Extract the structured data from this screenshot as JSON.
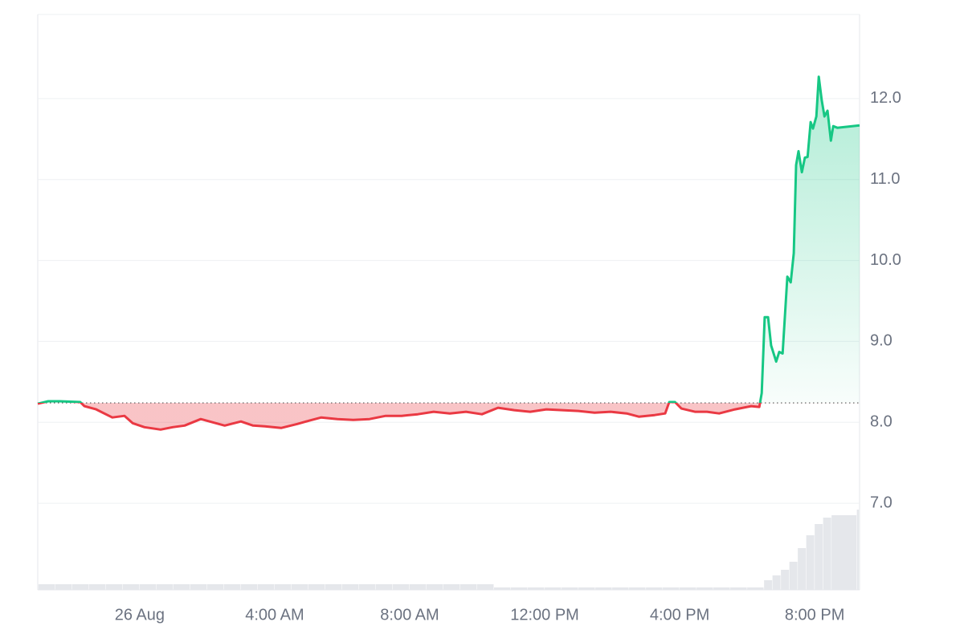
{
  "chart_data": {
    "type": "line",
    "x": [
      -3.02,
      -2.71,
      -2.36,
      -1.76,
      -1.64,
      -1.29,
      -0.81,
      -0.45,
      -0.21,
      0.14,
      0.62,
      0.98,
      1.33,
      1.81,
      2.17,
      2.52,
      3.0,
      3.36,
      3.71,
      4.19,
      4.67,
      5.02,
      5.38,
      5.86,
      6.33,
      6.81,
      7.29,
      7.76,
      8.24,
      8.71,
      9.19,
      9.67,
      10.14,
      10.62,
      11.1,
      11.57,
      12.05,
      12.52,
      13.0,
      13.48,
      13.95,
      14.43,
      14.79,
      15.26,
      15.57,
      15.69,
      15.86,
      16.05,
      16.45,
      16.81,
      17.17,
      17.64,
      18.12,
      18.36,
      18.43,
      18.52,
      18.62,
      18.71,
      18.86,
      18.95,
      19.05,
      19.19,
      19.29,
      19.38,
      19.45,
      19.52,
      19.62,
      19.71,
      19.79,
      19.88,
      19.95,
      20.05,
      20.12,
      20.21,
      20.29,
      20.38,
      20.48,
      20.55,
      20.67,
      21.33
    ],
    "values": [
      8.23,
      8.26,
      8.26,
      8.25,
      8.2,
      8.16,
      8.06,
      8.08,
      7.99,
      7.94,
      7.91,
      7.94,
      7.96,
      8.04,
      8.0,
      7.96,
      8.01,
      7.96,
      7.95,
      7.93,
      7.98,
      8.02,
      8.06,
      8.04,
      8.03,
      8.04,
      8.08,
      8.08,
      8.1,
      8.13,
      8.11,
      8.13,
      8.1,
      8.18,
      8.15,
      8.13,
      8.16,
      8.15,
      8.14,
      8.12,
      8.13,
      8.11,
      8.07,
      8.09,
      8.11,
      8.25,
      8.25,
      8.17,
      8.13,
      8.13,
      8.11,
      8.16,
      8.2,
      8.19,
      8.36,
      9.3,
      9.3,
      8.95,
      8.75,
      8.87,
      8.85,
      9.8,
      9.73,
      10.09,
      11.18,
      11.35,
      11.09,
      11.27,
      11.28,
      11.71,
      11.63,
      11.78,
      12.27,
      11.98,
      11.78,
      11.85,
      11.48,
      11.66,
      11.64,
      11.67
    ],
    "baseline": 8.24,
    "up_color": "#16c784",
    "down_color": "#ea3943",
    "xlim": [
      -3.02,
      21.33
    ],
    "ylim": [
      5.93,
      13.04
    ],
    "xticks": [
      {
        "value": 0,
        "label": "26 Aug"
      },
      {
        "value": 4,
        "label": "4:00 AM"
      },
      {
        "value": 8,
        "label": "8:00 AM"
      },
      {
        "value": 12,
        "label": "12:00 PM"
      },
      {
        "value": 16,
        "label": "4:00 PM"
      },
      {
        "value": 20,
        "label": "8:00 PM"
      }
    ],
    "yticks": [
      {
        "value": 7,
        "label": "7.0"
      },
      {
        "value": 8,
        "label": "8.0"
      },
      {
        "value": 9,
        "label": "9.0"
      },
      {
        "value": 10,
        "label": "10.0"
      },
      {
        "value": 11,
        "label": "11.0"
      },
      {
        "value": 12,
        "label": "12.0"
      }
    ],
    "grid": true,
    "volume": {
      "color": "#e5e7eb",
      "ylim": [
        0,
        100
      ],
      "x": [
        -3.0,
        -2.5,
        -2.0,
        -1.5,
        -1.0,
        -0.5,
        0.0,
        0.5,
        1.0,
        1.5,
        2.0,
        2.5,
        3.0,
        3.5,
        4.0,
        4.5,
        5.0,
        5.5,
        6.0,
        6.5,
        7.0,
        7.5,
        8.0,
        8.5,
        9.0,
        9.5,
        10.0,
        10.5,
        11.0,
        11.5,
        12.0,
        12.5,
        13.0,
        13.5,
        14.0,
        14.5,
        15.0,
        15.5,
        16.0,
        16.5,
        17.0,
        17.5,
        18.0,
        18.5,
        18.75,
        19.0,
        19.25,
        19.5,
        19.75,
        20.0,
        20.25,
        20.5,
        21.25
      ],
      "values": [
        7,
        7,
        7,
        7,
        7,
        7,
        7,
        7,
        7,
        7,
        7,
        7,
        7,
        7,
        7,
        7,
        7,
        7,
        7,
        7,
        7,
        7,
        7,
        7,
        7,
        7,
        7,
        3,
        3,
        3,
        3,
        3,
        3,
        3,
        3,
        3,
        3,
        3,
        3,
        3,
        3,
        3,
        3,
        12,
        18,
        25,
        35,
        52,
        68,
        82,
        90,
        93,
        100
      ]
    }
  }
}
